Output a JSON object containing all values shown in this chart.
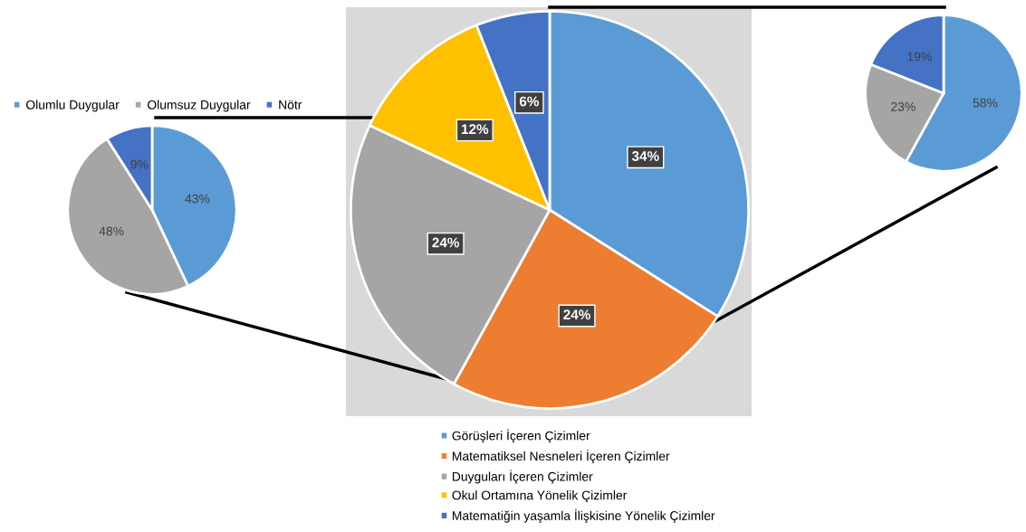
{
  "chart_data": [
    {
      "type": "pie",
      "categories": [
        "Olumlu Duygular",
        "Olumsuz Duygular",
        "Nötr"
      ],
      "values": [
        43,
        48,
        9
      ],
      "value_labels": [
        "43%",
        "48%",
        "9%"
      ],
      "colors": [
        "#5b9bd5",
        "#a5a5a5",
        "#4472c4"
      ],
      "legend": "top"
    },
    {
      "type": "pie",
      "categories": [
        "Görüşleri İçeren Çizimler",
        "Matematiksel Nesneleri İçeren Çizimler",
        "Duyguları İçeren Çizimler",
        "Okul Ortamına Yönelik Çizimler",
        "Matematiğin yaşamla İlişkisine Yönelik Çizimler"
      ],
      "values": [
        34,
        24,
        24,
        12,
        6
      ],
      "value_labels": [
        "34%",
        "24%",
        "24%",
        "12%",
        "6%"
      ],
      "colors": [
        "#5b9bd5",
        "#ed7d31",
        "#a5a5a5",
        "#ffc000",
        "#4472c4"
      ],
      "legend": "bottom"
    },
    {
      "type": "pie",
      "categories": [
        null,
        null,
        null
      ],
      "values": [
        58,
        23,
        19
      ],
      "value_labels": [
        "58%",
        "23%",
        "19%"
      ],
      "colors": [
        "#5b9bd5",
        "#a5a5a5",
        "#4472c4"
      ]
    }
  ]
}
